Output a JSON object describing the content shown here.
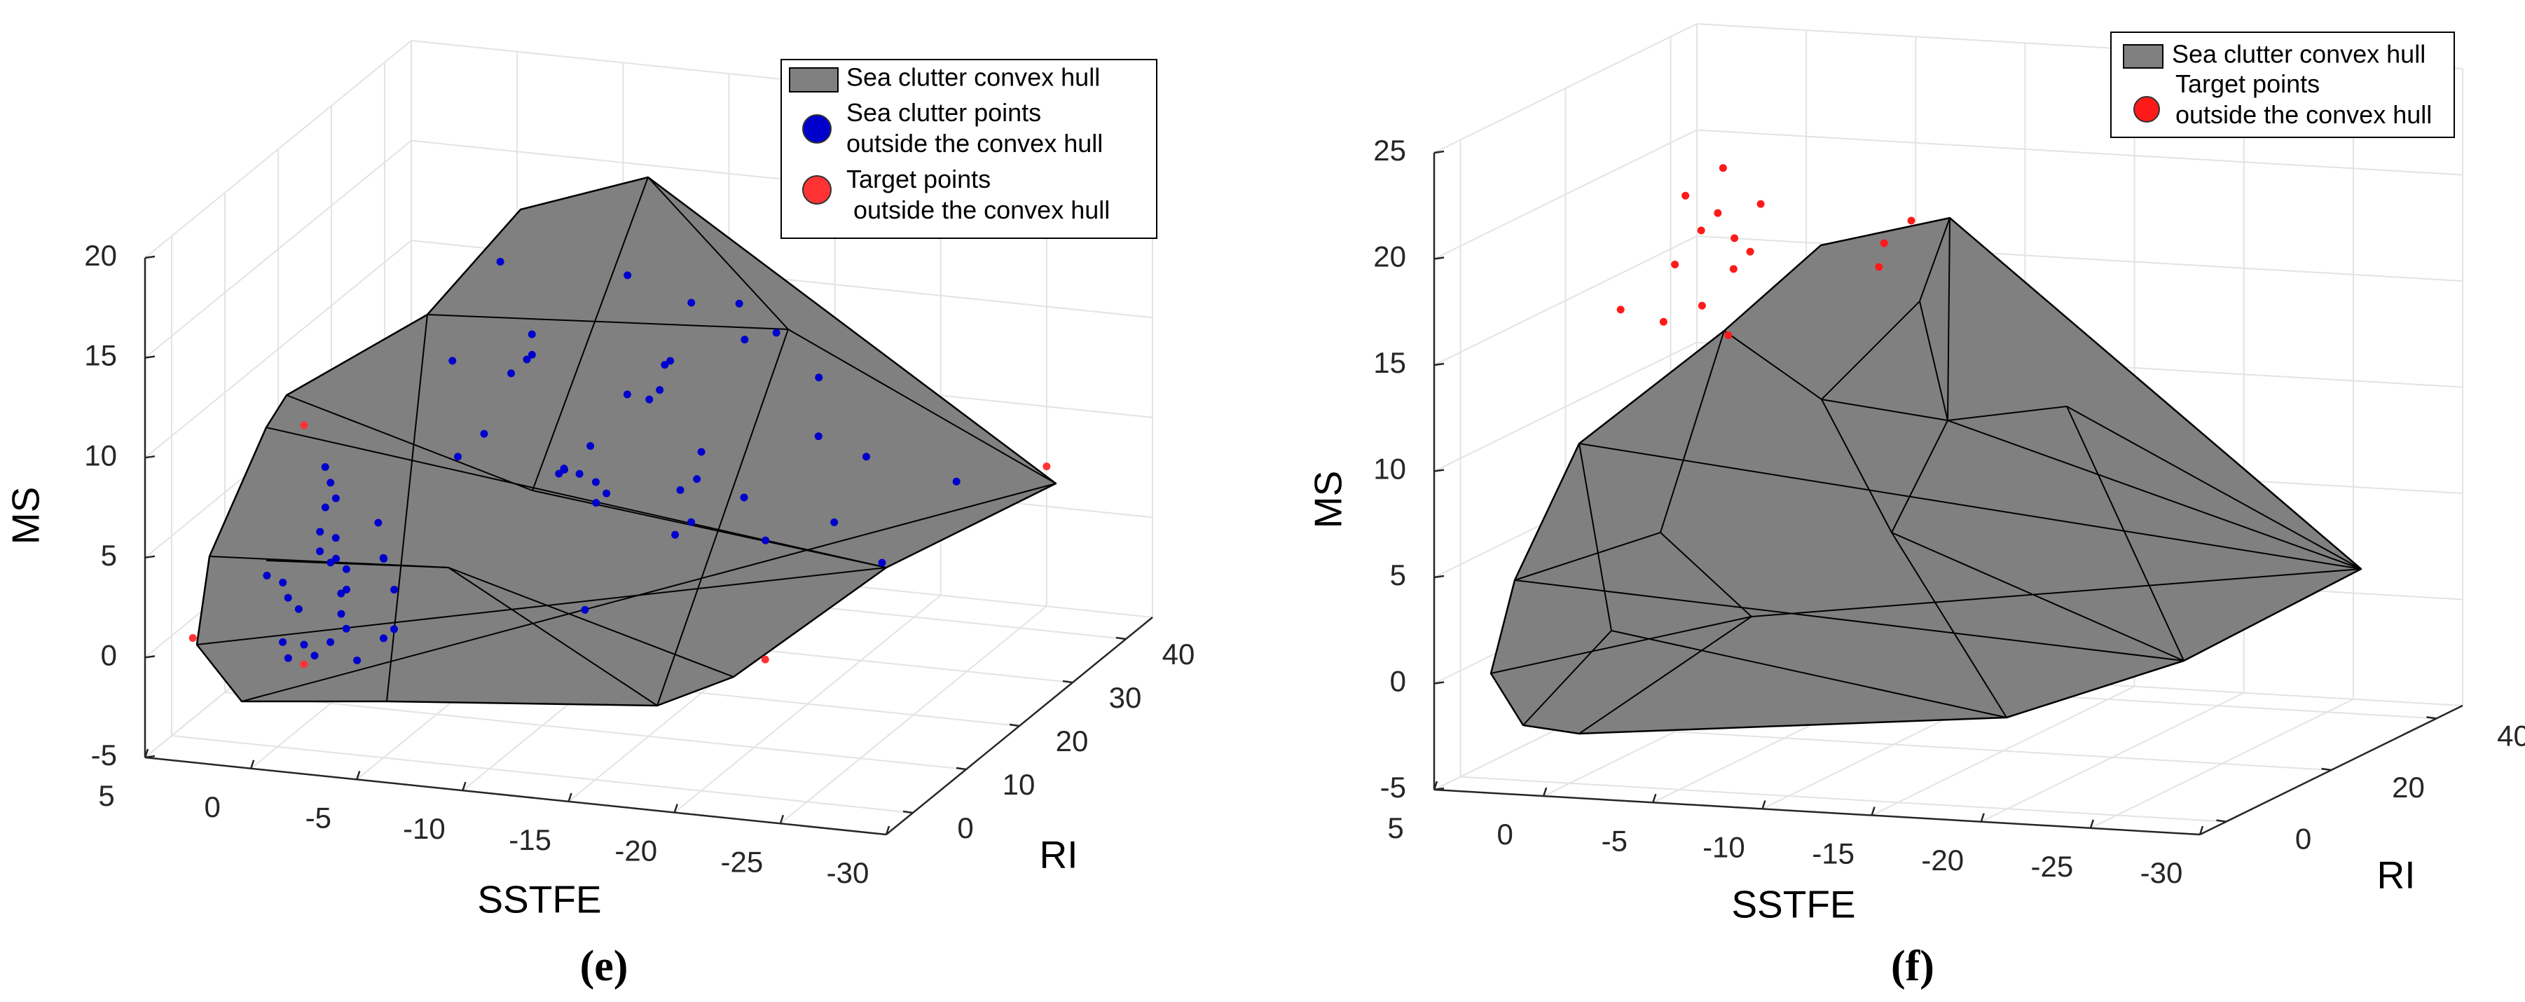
{
  "chart_data": [
    {
      "type": "scatter3d",
      "caption": "(e)",
      "xlabel": "SSTFE",
      "ylabel": "RI",
      "zlabel": "MS",
      "xlim": [
        5,
        -30
      ],
      "xticks": [
        5,
        0,
        -5,
        -10,
        -15,
        -20,
        -25,
        -30
      ],
      "ylim": [
        -5,
        45
      ],
      "yticks": [
        0,
        10,
        20,
        30,
        40
      ],
      "zlim": [
        -5,
        20
      ],
      "zticks": [
        -5,
        0,
        5,
        10,
        15,
        20
      ],
      "grid": true,
      "hull": {
        "name": "Sea clutter convex hull",
        "color": "#808080"
      },
      "series": [
        {
          "name": "Sea clutter points\noutside the convex hull",
          "color": "#0000cc",
          "x": [
            -1,
            -2,
            -3,
            0,
            -1,
            -2,
            -4,
            -3,
            -1,
            0,
            -2,
            -3,
            -1,
            -2,
            -4,
            -5,
            -1,
            -3,
            -2,
            0,
            -1,
            -2,
            -3,
            -4,
            -2,
            -1,
            -3,
            -2,
            -5,
            -4,
            -6,
            -8,
            -10,
            -12,
            -7,
            -9,
            -11,
            -14,
            -16,
            -13,
            -8,
            -10,
            -6,
            -15,
            -18,
            -12,
            -9,
            -7,
            -11,
            -13,
            -17,
            -20,
            -14,
            -10,
            -8,
            -16,
            -12,
            -19,
            -22,
            -15,
            -9,
            -11,
            -6,
            -13,
            -18,
            -10,
            -7,
            -14,
            -21,
            -12
          ],
          "y": [
            0,
            2,
            -2,
            1,
            4,
            -1,
            3,
            0,
            -3,
            2,
            5,
            1,
            -2,
            3,
            6,
            0,
            1,
            -1,
            4,
            -2,
            7,
            2,
            3,
            -3,
            0,
            5,
            8,
            1,
            2,
            4,
            10,
            15,
            20,
            25,
            5,
            18,
            30,
            22,
            12,
            35,
            28,
            8,
            20,
            15,
            30,
            40,
            12,
            25,
            35,
            5,
            20,
            25,
            10,
            32,
            38,
            28,
            18,
            35,
            40,
            42,
            3,
            15,
            30,
            26,
            8,
            22,
            14,
            38,
            30,
            10
          ],
          "z": [
            2,
            4,
            1,
            3,
            5,
            0,
            6,
            3,
            1,
            -1,
            2,
            4,
            3,
            7,
            2,
            5,
            0,
            6,
            1,
            4,
            3,
            8,
            -1,
            2,
            5,
            6,
            3,
            9,
            1,
            0,
            8,
            12,
            5,
            10,
            14,
            6,
            9,
            3,
            7,
            11,
            2,
            15,
            10,
            4,
            6,
            8,
            13,
            4,
            2,
            9,
            5,
            3,
            12,
            7,
            5,
            1,
            16,
            4,
            2,
            6,
            11,
            8,
            3,
            13,
            10,
            4,
            17,
            9,
            0,
            1
          ]
        },
        {
          "name": "Target points\n outside the convex hull",
          "color": "#ff3333",
          "x": [
            -25,
            4,
            0,
            -2,
            -18
          ],
          "y": [
            45,
            0,
            5,
            -3,
            20
          ],
          "z": [
            2,
            0,
            10,
            0,
            -3
          ]
        }
      ]
    },
    {
      "type": "scatter3d",
      "caption": "(f)",
      "xlabel": "SSTFE",
      "ylabel": "RI",
      "zlabel": "MS",
      "xlim": [
        5,
        -30
      ],
      "xticks": [
        5,
        0,
        -5,
        -10,
        -15,
        -20,
        -25,
        -30
      ],
      "ylim": [
        -5,
        45
      ],
      "yticks": [
        0,
        20,
        40
      ],
      "zlim": [
        -5,
        25
      ],
      "zticks": [
        -5,
        0,
        5,
        10,
        15,
        20,
        25
      ],
      "grid": true,
      "hull": {
        "name": "Sea clutter convex hull",
        "color": "#808080"
      },
      "series": [
        {
          "name": "Target points\noutside the convex hull",
          "color": "#ff1a1a",
          "x": [
            0,
            -1,
            -2,
            0,
            -1,
            -2,
            -1,
            0,
            -2,
            -1,
            1,
            2,
            -6,
            -5,
            -5,
            -1
          ],
          "y": [
            25,
            24,
            26,
            22,
            27,
            23,
            25,
            20,
            28,
            21,
            22,
            18,
            40,
            38,
            39,
            26
          ],
          "z": [
            18,
            19,
            17,
            20,
            16,
            18,
            21,
            17,
            19,
            15,
            14,
            15,
            17,
            15,
            16,
            13
          ]
        }
      ]
    }
  ]
}
